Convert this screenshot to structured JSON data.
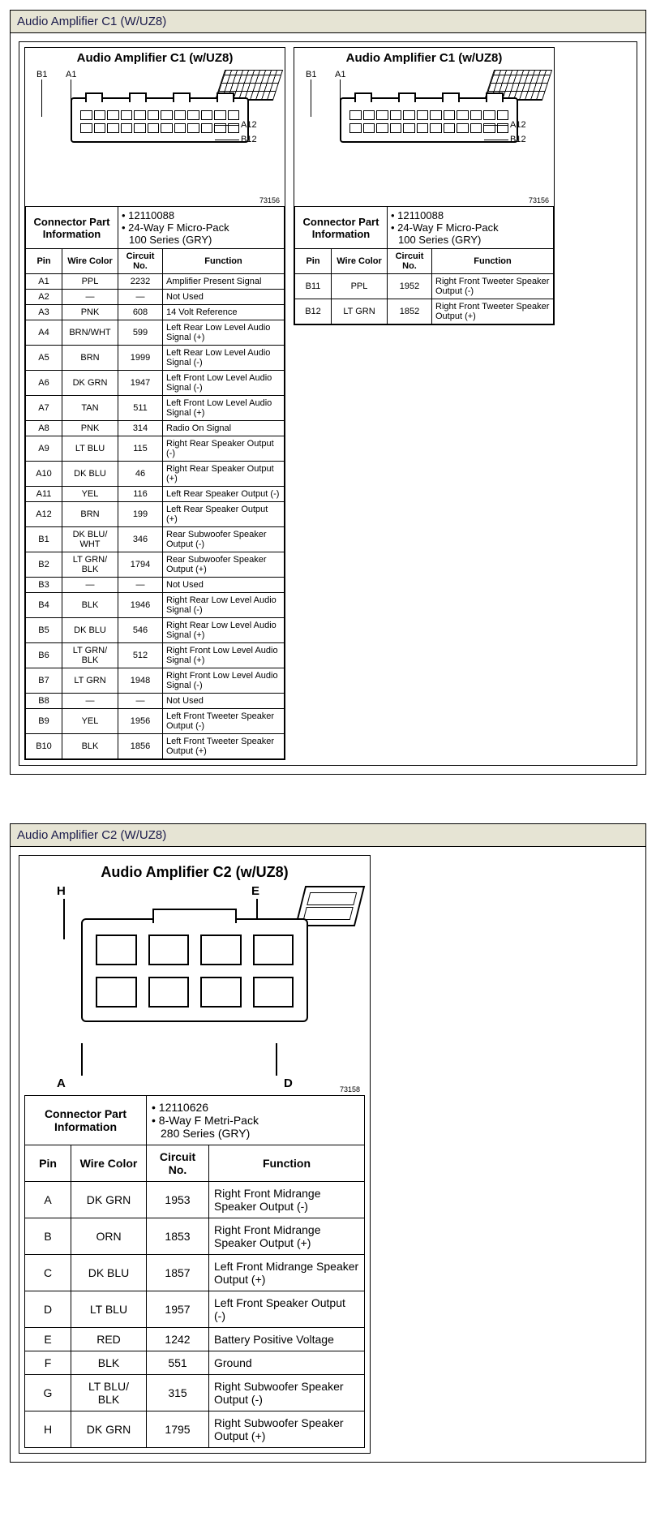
{
  "section1": {
    "header": "Audio Amplifier C1 (W/UZ8)",
    "panelTitle": "Audio Amplifier C1 (w/UZ8)",
    "refnum": "73156",
    "labels": {
      "B1": "B1",
      "A1": "A1",
      "A12": "A12",
      "B12": "B12"
    },
    "connectorInfoLabel": "Connector Part Information",
    "partNumber": "12110088",
    "partDesc1": "24-Way F Micro-Pack",
    "partDesc2": "100 Series (GRY)",
    "columns": {
      "pin": "Pin",
      "wire": "Wire Color",
      "circuit": "Circuit No.",
      "func": "Function"
    },
    "rowsLeft": [
      {
        "pin": "A1",
        "wire": "PPL",
        "circuit": "2232",
        "func": "Amplifier Present Signal"
      },
      {
        "pin": "A2",
        "wire": "—",
        "circuit": "—",
        "func": "Not Used"
      },
      {
        "pin": "A3",
        "wire": "PNK",
        "circuit": "608",
        "func": "14 Volt Reference"
      },
      {
        "pin": "A4",
        "wire": "BRN/WHT",
        "circuit": "599",
        "func": "Left Rear Low Level Audio Signal (+)"
      },
      {
        "pin": "A5",
        "wire": "BRN",
        "circuit": "1999",
        "func": "Left Rear Low Level Audio Signal (-)"
      },
      {
        "pin": "A6",
        "wire": "DK GRN",
        "circuit": "1947",
        "func": "Left Front Low Level Audio Signal (-)"
      },
      {
        "pin": "A7",
        "wire": "TAN",
        "circuit": "511",
        "func": "Left Front Low Level Audio Signal (+)"
      },
      {
        "pin": "A8",
        "wire": "PNK",
        "circuit": "314",
        "func": "Radio On Signal"
      },
      {
        "pin": "A9",
        "wire": "LT BLU",
        "circuit": "115",
        "func": "Right Rear Speaker Output (-)"
      },
      {
        "pin": "A10",
        "wire": "DK BLU",
        "circuit": "46",
        "func": "Right Rear Speaker Output (+)"
      },
      {
        "pin": "A11",
        "wire": "YEL",
        "circuit": "116",
        "func": "Left Rear Speaker Output (-)"
      },
      {
        "pin": "A12",
        "wire": "BRN",
        "circuit": "199",
        "func": "Left Rear Speaker Output (+)"
      },
      {
        "pin": "B1",
        "wire": "DK BLU/ WHT",
        "circuit": "346",
        "func": "Rear Subwoofer Speaker Output (-)"
      },
      {
        "pin": "B2",
        "wire": "LT GRN/ BLK",
        "circuit": "1794",
        "func": "Rear Subwoofer Speaker Output (+)"
      },
      {
        "pin": "B3",
        "wire": "—",
        "circuit": "—",
        "func": "Not Used"
      },
      {
        "pin": "B4",
        "wire": "BLK",
        "circuit": "1946",
        "func": "Right Rear Low Level Audio Signal (-)"
      },
      {
        "pin": "B5",
        "wire": "DK BLU",
        "circuit": "546",
        "func": "Right Rear Low Level Audio Signal (+)"
      },
      {
        "pin": "B6",
        "wire": "LT GRN/ BLK",
        "circuit": "512",
        "func": "Right Front Low Level Audio Signal (+)"
      },
      {
        "pin": "B7",
        "wire": "LT GRN",
        "circuit": "1948",
        "func": "Right Front Low Level Audio Signal (-)"
      },
      {
        "pin": "B8",
        "wire": "—",
        "circuit": "—",
        "func": "Not Used"
      },
      {
        "pin": "B9",
        "wire": "YEL",
        "circuit": "1956",
        "func": "Left Front Tweeter Speaker Output (-)"
      },
      {
        "pin": "B10",
        "wire": "BLK",
        "circuit": "1856",
        "func": "Left Front Tweeter Speaker Output (+)"
      }
    ],
    "rowsRight": [
      {
        "pin": "B11",
        "wire": "PPL",
        "circuit": "1952",
        "func": "Right Front Tweeter Speaker Output (-)"
      },
      {
        "pin": "B12",
        "wire": "LT GRN",
        "circuit": "1852",
        "func": "Right Front Tweeter Speaker Output (+)"
      }
    ]
  },
  "section2": {
    "header": "Audio Amplifier C2 (W/UZ8)",
    "panelTitle": "Audio Amplifier C2 (w/UZ8)",
    "refnum": "73158",
    "labels": {
      "H": "H",
      "E": "E",
      "A": "A",
      "D": "D"
    },
    "connectorInfoLabel": "Connector Part Information",
    "partNumber": "12110626",
    "partDesc1": "8-Way F Metri-Pack",
    "partDesc2": "280 Series (GRY)",
    "columns": {
      "pin": "Pin",
      "wire": "Wire Color",
      "circuit": "Circuit No.",
      "func": "Function"
    },
    "rows": [
      {
        "pin": "A",
        "wire": "DK GRN",
        "circuit": "1953",
        "func": "Right Front Midrange Speaker Output (-)"
      },
      {
        "pin": "B",
        "wire": "ORN",
        "circuit": "1853",
        "func": "Right Front Midrange Speaker Output (+)"
      },
      {
        "pin": "C",
        "wire": "DK BLU",
        "circuit": "1857",
        "func": "Left Front Midrange Speaker Output (+)"
      },
      {
        "pin": "D",
        "wire": "LT BLU",
        "circuit": "1957",
        "func": "Left Front Speaker Output (-)"
      },
      {
        "pin": "E",
        "wire": "RED",
        "circuit": "1242",
        "func": "Battery Positive Voltage"
      },
      {
        "pin": "F",
        "wire": "BLK",
        "circuit": "551",
        "func": "Ground"
      },
      {
        "pin": "G",
        "wire": "LT BLU/ BLK",
        "circuit": "315",
        "func": "Right Subwoofer Speaker Output (-)"
      },
      {
        "pin": "H",
        "wire": "DK GRN",
        "circuit": "1795",
        "func": "Right Subwoofer Speaker Output (+)"
      }
    ]
  },
  "style": {
    "header_bg": "#e6e4d4",
    "border_color": "#000000",
    "text_color": "#000000",
    "font_family": "Arial",
    "diagram_line_width": 2
  }
}
